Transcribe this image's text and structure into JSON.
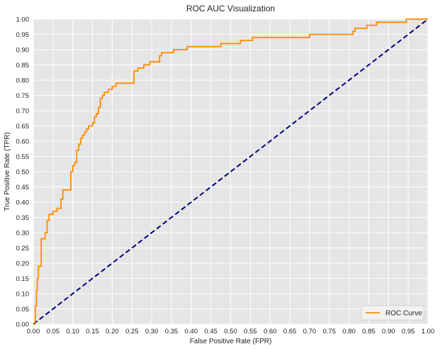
{
  "chart_data": {
    "type": "line",
    "title": "ROC AUC Visualization",
    "xlabel": "False Positive Rate (FPR)",
    "ylabel": "True Positive Rate (TPR)",
    "xlim": [
      0,
      1
    ],
    "ylim": [
      0,
      1
    ],
    "grid": true,
    "legend_position": "bottom-right",
    "x_ticks": [
      "0.00",
      "0.05",
      "0.10",
      "0.15",
      "0.20",
      "0.25",
      "0.30",
      "0.35",
      "0.40",
      "0.45",
      "0.50",
      "0.55",
      "0.60",
      "0.65",
      "0.70",
      "0.75",
      "0.80",
      "0.85",
      "0.90",
      "0.95",
      "1.00"
    ],
    "y_ticks": [
      "0.00",
      "0.05",
      "0.10",
      "0.15",
      "0.20",
      "0.25",
      "0.30",
      "0.35",
      "0.40",
      "0.45",
      "0.50",
      "0.55",
      "0.60",
      "0.65",
      "0.70",
      "0.75",
      "0.80",
      "0.85",
      "0.90",
      "0.95",
      "1.00"
    ],
    "series": [
      {
        "name": "ROC Curve",
        "color": "#ff8c00",
        "style": "step",
        "x": [
          0.0,
          0.005,
          0.005,
          0.008,
          0.008,
          0.01,
          0.01,
          0.013,
          0.013,
          0.02,
          0.02,
          0.03,
          0.03,
          0.035,
          0.035,
          0.04,
          0.04,
          0.05,
          0.05,
          0.06,
          0.06,
          0.07,
          0.07,
          0.075,
          0.075,
          0.08,
          0.08,
          0.095,
          0.095,
          0.1,
          0.1,
          0.105,
          0.105,
          0.11,
          0.11,
          0.115,
          0.115,
          0.12,
          0.12,
          0.125,
          0.125,
          0.13,
          0.13,
          0.135,
          0.135,
          0.14,
          0.14,
          0.15,
          0.15,
          0.155,
          0.155,
          0.16,
          0.16,
          0.165,
          0.165,
          0.17,
          0.17,
          0.175,
          0.175,
          0.18,
          0.18,
          0.19,
          0.19,
          0.2,
          0.2,
          0.21,
          0.21,
          0.225,
          0.225,
          0.255,
          0.255,
          0.265,
          0.265,
          0.28,
          0.28,
          0.295,
          0.295,
          0.32,
          0.32,
          0.325,
          0.325,
          0.33,
          0.33,
          0.355,
          0.355,
          0.39,
          0.39,
          0.475,
          0.475,
          0.525,
          0.525,
          0.555,
          0.555,
          0.7,
          0.7,
          0.81,
          0.81,
          0.815,
          0.815,
          0.845,
          0.845,
          0.87,
          0.87,
          0.945,
          0.945,
          1.0
        ],
        "y": [
          0.0,
          0.0,
          0.06,
          0.06,
          0.11,
          0.11,
          0.15,
          0.15,
          0.19,
          0.19,
          0.28,
          0.28,
          0.3,
          0.3,
          0.34,
          0.34,
          0.36,
          0.36,
          0.37,
          0.37,
          0.38,
          0.38,
          0.41,
          0.41,
          0.44,
          0.44,
          0.44,
          0.44,
          0.5,
          0.5,
          0.52,
          0.52,
          0.53,
          0.53,
          0.57,
          0.57,
          0.59,
          0.59,
          0.61,
          0.61,
          0.62,
          0.62,
          0.63,
          0.63,
          0.64,
          0.64,
          0.65,
          0.65,
          0.66,
          0.66,
          0.68,
          0.68,
          0.69,
          0.69,
          0.71,
          0.71,
          0.74,
          0.74,
          0.75,
          0.75,
          0.76,
          0.76,
          0.77,
          0.77,
          0.78,
          0.78,
          0.79,
          0.79,
          0.79,
          0.79,
          0.83,
          0.83,
          0.84,
          0.84,
          0.85,
          0.85,
          0.86,
          0.86,
          0.88,
          0.88,
          0.89,
          0.89,
          0.89,
          0.89,
          0.9,
          0.9,
          0.91,
          0.91,
          0.92,
          0.92,
          0.93,
          0.93,
          0.94,
          0.94,
          0.95,
          0.95,
          0.96,
          0.96,
          0.97,
          0.97,
          0.98,
          0.98,
          0.99,
          0.99,
          1.0,
          1.0
        ]
      },
      {
        "name": "",
        "color": "#000080",
        "style": "dashed",
        "x": [
          0,
          1
        ],
        "y": [
          0,
          1
        ]
      }
    ]
  },
  "colors": {
    "plot_background": "#e5e5e5",
    "grid": "#ffffff",
    "roc_curve": "#ff8c00",
    "diagonal": "#000080"
  }
}
